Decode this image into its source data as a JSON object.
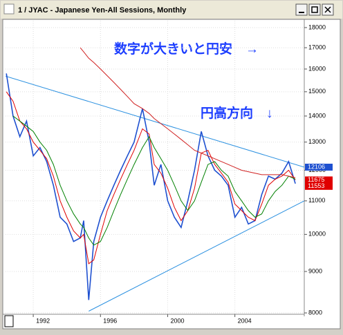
{
  "chart_data": {
    "type": "line",
    "title": "1 / JYAC - Japanese Yen-All Sessions, Monthly",
    "annotations": [
      "数字が大きいと円安　→",
      "円高方向　↓"
    ],
    "log_scale": true,
    "xlim": [
      1990.35,
      2008.13
    ],
    "xticks": [
      1992,
      1996,
      2000,
      2004
    ],
    "ylim": [
      7969,
      18355
    ],
    "yticks": [
      8000,
      9000,
      10000,
      11000,
      12000,
      13000,
      14000,
      15000,
      16000,
      17000,
      18000
    ],
    "grid": true,
    "x": [
      1990.4,
      1990.8,
      1991.2,
      1991.6,
      1992.0,
      1992.4,
      1992.8,
      1993.2,
      1993.6,
      1994.0,
      1994.4,
      1994.8,
      1995.0,
      1995.3,
      1995.6,
      1996.0,
      1996.4,
      1996.8,
      1997.2,
      1997.6,
      1998.0,
      1998.5,
      1998.9,
      1999.2,
      1999.6,
      2000.0,
      2000.4,
      2000.8,
      2001.2,
      2001.6,
      2002.0,
      2002.4,
      2002.8,
      2003.2,
      2003.6,
      2004.0,
      2004.4,
      2004.8,
      2005.2,
      2005.6,
      2006.0,
      2006.4,
      2006.8,
      2007.2,
      2007.6
    ],
    "series": [
      {
        "color": "#1e50d0",
        "values": [
          15800,
          14000,
          13200,
          13800,
          12500,
          12800,
          12300,
          11500,
          10500,
          10300,
          9800,
          9900,
          10400,
          8300,
          9800,
          10500,
          11000,
          11500,
          12000,
          12500,
          13000,
          14300,
          13000,
          11500,
          12200,
          11000,
          10500,
          10200,
          11000,
          12000,
          13400,
          12500,
          12000,
          11800,
          11500,
          10500,
          10800,
          10300,
          10400,
          11200,
          11800,
          11700,
          11900,
          12300,
          11553
        ]
      },
      {
        "color": "#e00000",
        "values": [
          15000,
          14600,
          13800,
          13500,
          13000,
          12700,
          12400,
          11800,
          11000,
          10500,
          10100,
          9900,
          10000,
          9200,
          9300,
          10000,
          10700,
          11200,
          11700,
          12200,
          12700,
          13500,
          13300,
          12200,
          11900,
          11400,
          10800,
          10400,
          10700,
          11400,
          12600,
          12700,
          12200,
          11900,
          11600,
          10900,
          10700,
          10500,
          10400,
          10900,
          11500,
          11700,
          11800,
          12000,
          11675
        ]
      },
      {
        "color": "#008000",
        "values": [
          null,
          14000,
          13800,
          13600,
          13400,
          13000,
          12700,
          12200,
          11500,
          11000,
          10600,
          10300,
          10200,
          9900,
          9700,
          9800,
          10200,
          10700,
          11200,
          11700,
          12200,
          12800,
          13200,
          12800,
          12400,
          12000,
          11500,
          11000,
          10700,
          11000,
          11600,
          12200,
          12300,
          12000,
          11800,
          11300,
          11000,
          10700,
          10500,
          10600,
          11000,
          11300,
          11500,
          11800,
          11700
        ]
      },
      {
        "color": "#d02020",
        "values": [
          null,
          null,
          null,
          null,
          null,
          null,
          null,
          null,
          null,
          null,
          null,
          17000,
          16800,
          16500,
          16300,
          16000,
          15700,
          15400,
          15100,
          14800,
          14500,
          14300,
          14100,
          13900,
          13700,
          13500,
          13300,
          13100,
          12900,
          12700,
          12600,
          12500,
          12400,
          12300,
          12200,
          12100,
          12000,
          11950,
          11900,
          11850,
          11850,
          11850,
          11850,
          11800,
          11750
        ]
      }
    ],
    "trendlines": [
      {
        "color": "#2a90e0",
        "x": [
          1990.35,
          2008.13
        ],
        "values": [
          15680,
          12106
        ]
      },
      {
        "color": "#2a90e0",
        "x": [
          1995.3,
          2008.13
        ],
        "values": [
          8040,
          11000
        ]
      }
    ],
    "tags": [
      {
        "color": "#1e50d0",
        "path": "chart_data.trendlines.0.values.1"
      },
      {
        "color": "#e00000",
        "path": "chart_data.series.1.values.44"
      },
      {
        "color": "#e00000",
        "path": "chart_data.series.0.values.44"
      }
    ]
  }
}
